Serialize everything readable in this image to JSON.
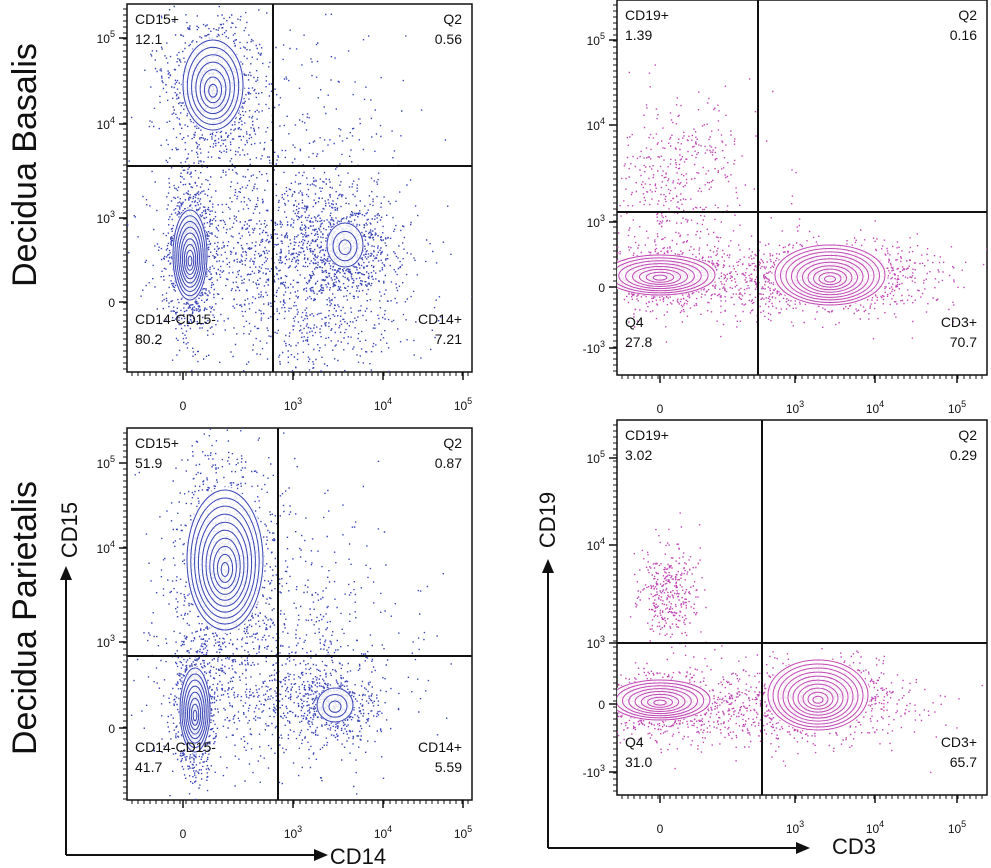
{
  "row_labels": [
    "Decidua Basalis",
    "Decidua Parietalis"
  ],
  "colors": {
    "cd14_panel": "#3a45b5",
    "cd19_panel": "#c048b4",
    "axis": "#111111"
  },
  "axis_titles": {
    "left_y": "CD15",
    "left_x": "CD14",
    "right_y": "CD19",
    "right_x": "CD3"
  },
  "chart_data": [
    {
      "type": "scatter",
      "title": "Decidua Basalis CD14 vs CD15",
      "xlabel": "CD14",
      "ylabel": "CD15",
      "x_ticks": [
        "0",
        "10^3",
        "10^4",
        "10^5"
      ],
      "y_ticks": [
        "10^5",
        "10^4",
        "10^3",
        "0"
      ],
      "quadrants": [
        {
          "name": "CD15+",
          "value": "12.1"
        },
        {
          "name": "Q2",
          "value": "0.56"
        },
        {
          "name": "CD14-CD15-",
          "value": "80.2"
        },
        {
          "name": "CD14+",
          "value": "7.21"
        }
      ]
    },
    {
      "type": "scatter",
      "title": "Decidua Basalis CD3 vs CD19",
      "xlabel": "CD3",
      "ylabel": "CD19",
      "x_ticks": [
        "0",
        "10^3",
        "10^4",
        "10^5"
      ],
      "y_ticks": [
        "10^5",
        "10^4",
        "10^3",
        "0",
        "-10^3"
      ],
      "quadrants": [
        {
          "name": "CD19+",
          "value": "1.39"
        },
        {
          "name": "Q2",
          "value": "0.16"
        },
        {
          "name": "Q4",
          "value": "27.8"
        },
        {
          "name": "CD3+",
          "value": "70.7"
        }
      ]
    },
    {
      "type": "scatter",
      "title": "Decidua Parietalis CD14 vs CD15",
      "xlabel": "CD14",
      "ylabel": "CD15",
      "x_ticks": [
        "0",
        "10^3",
        "10^4",
        "10^5"
      ],
      "y_ticks": [
        "10^5",
        "10^4",
        "10^3",
        "0"
      ],
      "quadrants": [
        {
          "name": "CD15+",
          "value": "51.9"
        },
        {
          "name": "Q2",
          "value": "0.87"
        },
        {
          "name": "CD14-CD15-",
          "value": "41.7"
        },
        {
          "name": "CD14+",
          "value": "5.59"
        }
      ]
    },
    {
      "type": "scatter",
      "title": "Decidua Parietalis CD3 vs CD19",
      "xlabel": "CD3",
      "ylabel": "CD19",
      "x_ticks": [
        "0",
        "10^3",
        "10^4",
        "10^5"
      ],
      "y_ticks": [
        "10^5",
        "10^4",
        "10^3",
        "0",
        "-10^3"
      ],
      "quadrants": [
        {
          "name": "CD19+",
          "value": "3.02"
        },
        {
          "name": "Q2",
          "value": "0.29"
        },
        {
          "name": "Q4",
          "value": "31.0"
        },
        {
          "name": "CD3+",
          "value": "65.7"
        }
      ]
    }
  ]
}
